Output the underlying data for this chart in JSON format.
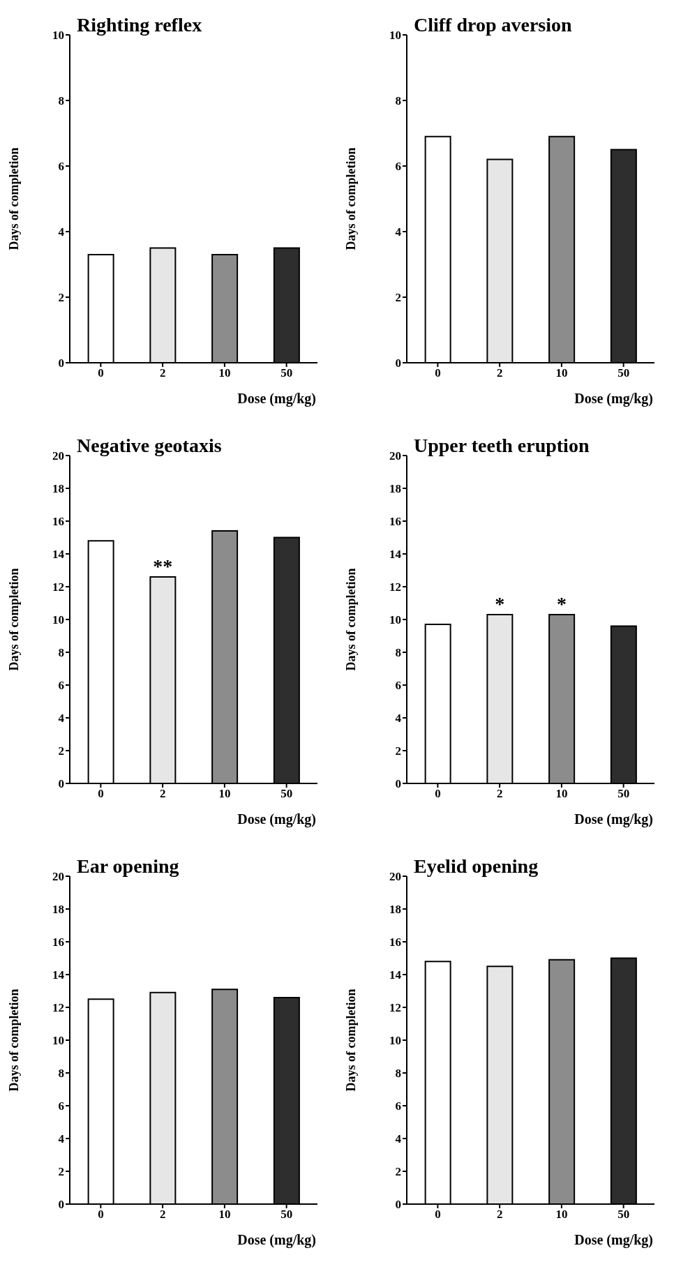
{
  "chart_data": [
    {
      "type": "bar",
      "title": "Righting reflex",
      "xlabel": "Dose (mg/kg)",
      "ylabel": "Days of completion",
      "categories": [
        "0",
        "2",
        "10",
        "50"
      ],
      "values": [
        3.3,
        3.5,
        3.3,
        3.5
      ],
      "colors": [
        "#ffffff",
        "#e6e6e6",
        "#8c8c8c",
        "#2e2e2e"
      ],
      "ylim": [
        0,
        10
      ],
      "yticks": [
        0,
        2,
        4,
        6,
        8,
        10
      ],
      "grid": false,
      "legend": false
    },
    {
      "type": "bar",
      "title": "Cliff drop aversion",
      "xlabel": "Dose (mg/kg)",
      "ylabel": "Days of completion",
      "categories": [
        "0",
        "2",
        "10",
        "50"
      ],
      "values": [
        6.9,
        6.2,
        6.9,
        6.5
      ],
      "colors": [
        "#ffffff",
        "#e6e6e6",
        "#8c8c8c",
        "#2e2e2e"
      ],
      "ylim": [
        0,
        10
      ],
      "yticks": [
        0,
        2,
        4,
        6,
        8,
        10
      ],
      "grid": false,
      "legend": false
    },
    {
      "type": "bar",
      "title": "Negative geotaxis",
      "xlabel": "Dose (mg/kg)",
      "ylabel": "Days of completion",
      "categories": [
        "0",
        "2",
        "10",
        "50"
      ],
      "values": [
        14.8,
        12.6,
        15.4,
        15.0
      ],
      "colors": [
        "#ffffff",
        "#e6e6e6",
        "#8c8c8c",
        "#2e2e2e"
      ],
      "ylim": [
        0,
        20
      ],
      "yticks": [
        0,
        2,
        4,
        6,
        8,
        10,
        12,
        14,
        16,
        18,
        20
      ],
      "grid": false,
      "legend": false,
      "annotations": [
        {
          "text": "**",
          "x": "2",
          "y": 12.6
        }
      ]
    },
    {
      "type": "bar",
      "title": "Upper teeth eruption",
      "xlabel": "Dose (mg/kg)",
      "ylabel": "Days of completion",
      "categories": [
        "0",
        "2",
        "10",
        "50"
      ],
      "values": [
        9.7,
        10.3,
        10.3,
        9.6
      ],
      "colors": [
        "#ffffff",
        "#e6e6e6",
        "#8c8c8c",
        "#2e2e2e"
      ],
      "ylim": [
        0,
        20
      ],
      "yticks": [
        0,
        2,
        4,
        6,
        8,
        10,
        12,
        14,
        16,
        18,
        20
      ],
      "grid": false,
      "legend": false,
      "annotations": [
        {
          "text": "*",
          "x": "2",
          "y": 10.3
        },
        {
          "text": "*",
          "x": "10",
          "y": 10.3
        }
      ]
    },
    {
      "type": "bar",
      "title": "Ear opening",
      "xlabel": "Dose (mg/kg)",
      "ylabel": "Days of completion",
      "categories": [
        "0",
        "2",
        "10",
        "50"
      ],
      "values": [
        12.5,
        12.9,
        13.1,
        12.6
      ],
      "colors": [
        "#ffffff",
        "#e6e6e6",
        "#8c8c8c",
        "#2e2e2e"
      ],
      "ylim": [
        0,
        20
      ],
      "yticks": [
        0,
        2,
        4,
        6,
        8,
        10,
        12,
        14,
        16,
        18,
        20
      ],
      "grid": false,
      "legend": false
    },
    {
      "type": "bar",
      "title": "Eyelid opening",
      "xlabel": "Dose (mg/kg)",
      "ylabel": "Days of completion",
      "categories": [
        "0",
        "2",
        "10",
        "50"
      ],
      "values": [
        14.8,
        14.5,
        14.9,
        15.0
      ],
      "colors": [
        "#ffffff",
        "#e6e6e6",
        "#8c8c8c",
        "#2e2e2e"
      ],
      "ylim": [
        0,
        20
      ],
      "yticks": [
        0,
        2,
        4,
        6,
        8,
        10,
        12,
        14,
        16,
        18,
        20
      ],
      "grid": false,
      "legend": false
    }
  ]
}
